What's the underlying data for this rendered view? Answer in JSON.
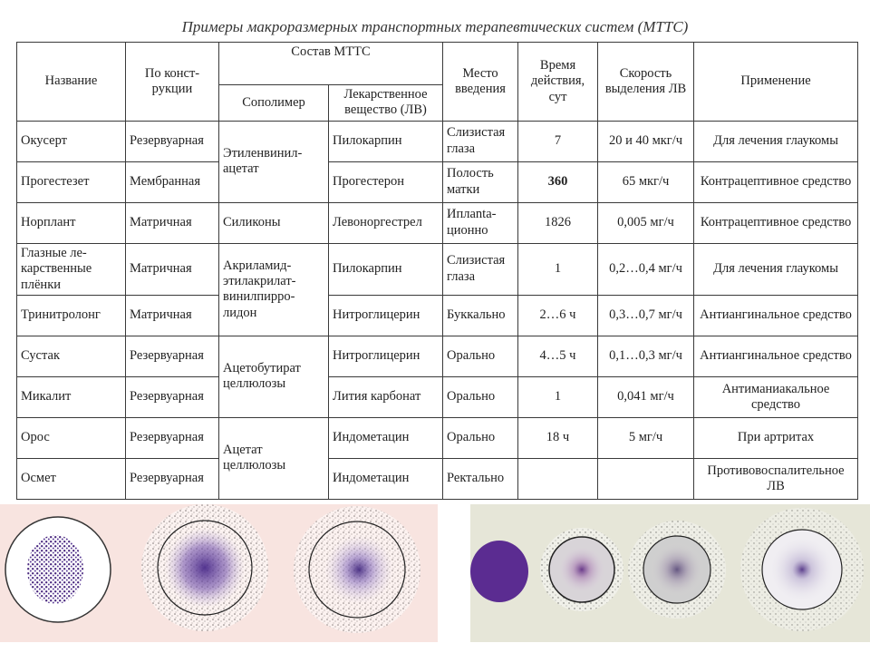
{
  "title": "Примеры макроразмерных транспортных терапевтических систем (МТТС)",
  "headers": {
    "name": "Название",
    "construction": "По конст-\nрукции",
    "composition": "Состав МТТС",
    "copolymer": "Сополимер",
    "drug": "Лекарственное вещество (ЛВ)",
    "site": "Место введения",
    "duration": "Время действия, сут",
    "release_rate": "Скорость выделения ЛВ",
    "application": "Применение"
  },
  "rows": [
    {
      "name": "Окусерт",
      "construction": "Резервуарная",
      "drug": "Пилокарпин",
      "site": "Слизистая глаза",
      "duration": "7",
      "rate": "20 и 40 мкг/ч",
      "application": "Для лечения глаукомы"
    },
    {
      "name": "Прогестезет",
      "construction": "Мембранная",
      "drug": "Прогестерон",
      "site": "Полость матки",
      "duration": "360",
      "rate": "65 мкг/ч",
      "application": "Контрацептивное средство"
    },
    {
      "name": "Норплант",
      "construction": "Матричная",
      "copolymer": "Силиконы",
      "drug": "Левоноргестрел",
      "site": "Иплanta-ционно",
      "duration": "1826",
      "rate": "0,005 мг/ч",
      "application": "Контрацептивное средство"
    },
    {
      "name": "Глазные ле-карственные плёнки",
      "construction": "Матричная",
      "drug": "Пилокарпин",
      "site": "Слизистая глаза",
      "duration": "1",
      "rate": "0,2…0,4 мг/ч",
      "application": "Для лечения глаукомы"
    },
    {
      "name": "Тринитролонг",
      "construction": "Матричная",
      "drug": "Нитроглицерин",
      "site": "Буккально",
      "duration": "2…6 ч",
      "rate": "0,3…0,7 мг/ч",
      "application": "Антиангинальное средство"
    },
    {
      "name": "Сустак",
      "construction": "Резервуарная",
      "drug": "Нитроглицерин",
      "site": "Орально",
      "duration": "4…5 ч",
      "rate": "0,1…0,3 мг/ч",
      "application": "Антиангинальное средство"
    },
    {
      "name": "Микалит",
      "construction": "Резервуарная",
      "drug": "Лития карбонат",
      "site": "Орально",
      "duration": "1",
      "rate": "0,041 мг/ч",
      "application": "Антиманиакальное средство"
    },
    {
      "name": "Орос",
      "construction": "Резервуарная",
      "drug": "Индометацин",
      "site": "Орально",
      "duration": "18 ч",
      "rate": "5 мг/ч",
      "application": "При артритах"
    },
    {
      "name": "Осмет",
      "construction": "Резервуарная",
      "drug": "Индометацин",
      "site": "Ректально",
      "duration": "",
      "rate": "",
      "application": "Противовоспалительное ЛВ"
    }
  ],
  "copolymer_groups": {
    "ethylene_vinyl_acetate": "Этиленвинил-ацетат",
    "acrylamide": "Акриламид-этилакрилат-винилпирро-лидон",
    "acetobutyrate": "Ацетобутират целлюлозы",
    "acetate": "Ацетат целлюлозы"
  },
  "colors": {
    "drug_purple": "#5a2d8a",
    "left_panel_bg": "#f8e4e0",
    "right_panel_bg": "#e6e6d8"
  }
}
